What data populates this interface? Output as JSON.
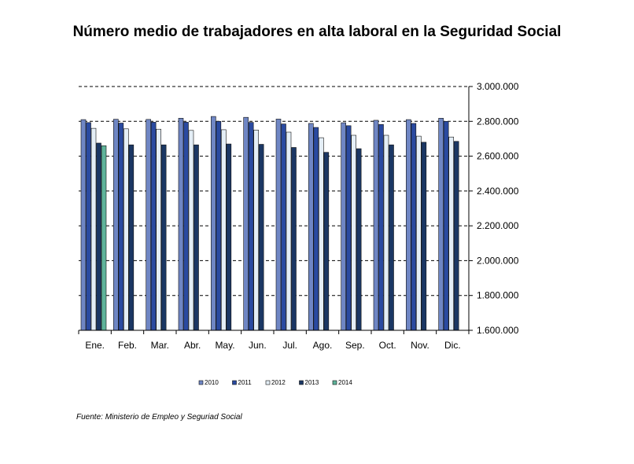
{
  "chart_data": {
    "type": "bar",
    "title": "Número medio de trabajadores en alta laboral en la Seguridad Social",
    "categories": [
      "Ene.",
      "Feb.",
      "Mar.",
      "Abr.",
      "May.",
      "Jun.",
      "Jul.",
      "Ago.",
      "Sep.",
      "Oct.",
      "Nov.",
      "Dic."
    ],
    "series": [
      {
        "name": "2010",
        "values": [
          2810000,
          2812000,
          2811000,
          2818000,
          2828000,
          2823000,
          2813000,
          2788000,
          2792000,
          2806000,
          2810000,
          2818000
        ]
      },
      {
        "name": "2011",
        "values": [
          2793000,
          2790000,
          2795000,
          2795000,
          2800000,
          2794000,
          2785000,
          2765000,
          2775000,
          2782000,
          2788000,
          2800000
        ]
      },
      {
        "name": "2012",
        "values": [
          2760000,
          2757000,
          2755000,
          2748000,
          2752000,
          2750000,
          2738000,
          2706000,
          2720000,
          2720000,
          2715000,
          2710000
        ]
      },
      {
        "name": "2013",
        "values": [
          2675000,
          2665000,
          2665000,
          2665000,
          2670000,
          2668000,
          2650000,
          2622000,
          2643000,
          2665000,
          2680000,
          2685000
        ]
      },
      {
        "name": "2014",
        "values": [
          2660000,
          null,
          null,
          null,
          null,
          null,
          null,
          null,
          null,
          null,
          null,
          null
        ]
      }
    ],
    "colors": [
      "#6f86c4",
      "#2a4aa0",
      "#e4eef6",
      "#1b3764",
      "#5fb39a"
    ],
    "ylim": [
      1600000,
      3000000
    ],
    "yticks": [
      1600000,
      1800000,
      2000000,
      2200000,
      2400000,
      2600000,
      2800000,
      3000000
    ],
    "ytick_labels": [
      "1.600.000",
      "1.800.000",
      "2.000.000",
      "2.200.000",
      "2.400.000",
      "2.600.000",
      "2.800.000",
      "3.000.000"
    ],
    "y_axis_side": "right",
    "grid": "dashed horizontal",
    "legend_placement": "bottom"
  },
  "source": "Fuente: Ministerio de Empleo y Seguriad Social"
}
